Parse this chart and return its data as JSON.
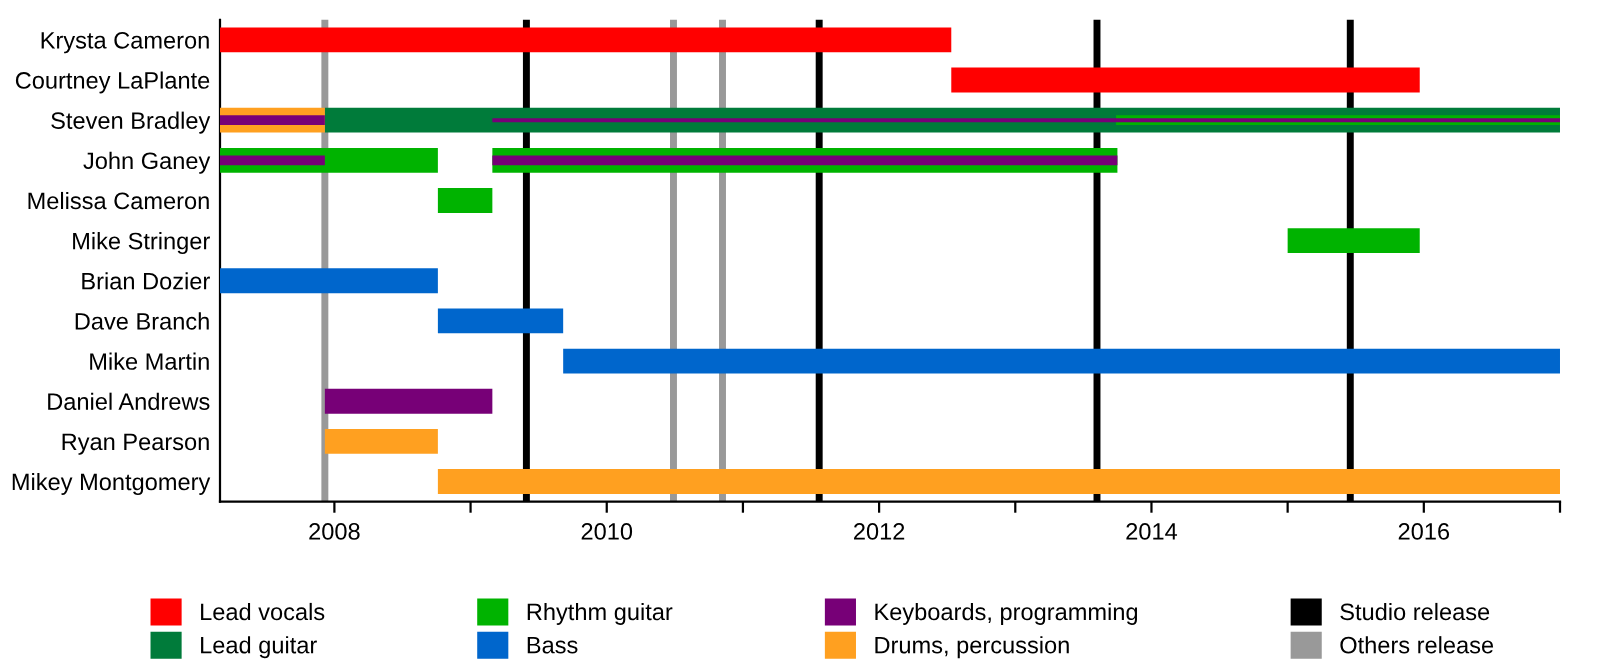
{
  "chart_data": {
    "type": "bar",
    "orientation": "horizontal",
    "grid": false,
    "legend": "bottom",
    "categories": [
      "Krysta Cameron",
      "Courtney LaPlante",
      "Steven Bradley",
      "John Ganey",
      "Melissa Cameron",
      "Mike Stringer",
      "Brian Dozier",
      "Dave Branch",
      "Mike Martin",
      "Daniel Andrews",
      "Ryan Pearson",
      "Mikey Montgomery"
    ],
    "xlim": [
      2007.16,
      2017.0
    ],
    "xticks": [
      2008,
      {
        "value": 2009,
        "label": null
      },
      2010,
      {
        "value": 2011,
        "label": null
      },
      2012,
      {
        "value": 2013,
        "label": null
      },
      2014,
      {
        "value": 2015,
        "label": null
      },
      2016,
      {
        "value": 2017,
        "label": null
      }
    ],
    "series": [
      {
        "name": "Lead vocals",
        "color": "#ff0000",
        "base": [
          2007.16,
          2012.53,
          null,
          null,
          null,
          null,
          null,
          null,
          null,
          null,
          null,
          null
        ],
        "values": [
          5.37,
          3.44,
          null,
          null,
          null,
          null,
          null,
          null,
          null,
          null,
          null,
          null
        ]
      },
      {
        "name": "Lead guitar",
        "color": "#007b3a",
        "base": [
          null,
          null,
          2007.93,
          null,
          null,
          null,
          null,
          null,
          null,
          null,
          null,
          null
        ],
        "values": [
          null,
          null,
          9.07,
          null,
          null,
          null,
          null,
          null,
          null,
          null,
          null,
          null
        ]
      },
      {
        "name": "Rhythm guitar",
        "color": "#00b300",
        "base": [
          null,
          null,
          2013.74,
          2007.16,
          2008.76,
          2015.0,
          null,
          null,
          null,
          null,
          null,
          null
        ],
        "values": [
          null,
          null,
          3.26,
          1.6,
          0.4,
          0.97,
          null,
          null,
          null,
          null,
          null,
          null
        ]
      },
      {
        "color": "#00b300",
        "base": [
          null,
          null,
          null,
          2009.16,
          null,
          null,
          null,
          null,
          null,
          null,
          null,
          null
        ],
        "values": [
          null,
          null,
          null,
          4.59,
          null,
          null,
          null,
          null,
          null,
          null,
          null,
          null
        ]
      },
      {
        "name": "Bass",
        "color": "#0066cc",
        "base": [
          null,
          null,
          null,
          null,
          null,
          null,
          2007.16,
          2008.76,
          2009.68,
          null,
          null,
          null
        ],
        "values": [
          null,
          null,
          null,
          null,
          null,
          null,
          1.6,
          0.92,
          7.32,
          null,
          null,
          null
        ]
      },
      {
        "name": "Keyboards, programming",
        "color": "#770077",
        "base": [
          null,
          null,
          2009.16,
          2007.16,
          null,
          null,
          null,
          null,
          null,
          2007.93,
          null,
          null
        ],
        "values": [
          null,
          null,
          7.84,
          0.77,
          null,
          null,
          null,
          null,
          null,
          1.23,
          null,
          null
        ]
      },
      {
        "name": "Drums, percussion",
        "color": "#ffa020",
        "base": [
          null,
          null,
          2007.16,
          null,
          null,
          null,
          null,
          null,
          null,
          null,
          2007.93,
          2008.76
        ],
        "values": [
          null,
          null,
          0.77,
          null,
          null,
          null,
          null,
          null,
          null,
          null,
          0.83,
          8.24
        ]
      },
      {
        "color": "#770077",
        "base": [
          null,
          null,
          2007.16,
          2009.16,
          null,
          null,
          null,
          null,
          null,
          null,
          null,
          null
        ],
        "values": [
          null,
          null,
          0.77,
          4.59,
          null,
          null,
          null,
          null,
          null,
          null,
          null,
          null
        ]
      }
    ],
    "ref_lines": [
      {
        "axis": "x",
        "value": 2007.93,
        "label": "Others release",
        "color": "#999999"
      },
      {
        "axis": "x",
        "value": 2009.41,
        "label": "Studio release",
        "color": "#000000"
      },
      {
        "axis": "x",
        "value": 2010.49,
        "color": "#999999"
      },
      {
        "axis": "x",
        "value": 2010.85,
        "color": "#999999"
      },
      {
        "axis": "x",
        "value": 2011.56,
        "color": "#000000"
      },
      {
        "axis": "x",
        "value": 2013.6,
        "color": "#000000"
      },
      {
        "axis": "x",
        "value": 2015.46,
        "color": "#000000"
      }
    ]
  }
}
